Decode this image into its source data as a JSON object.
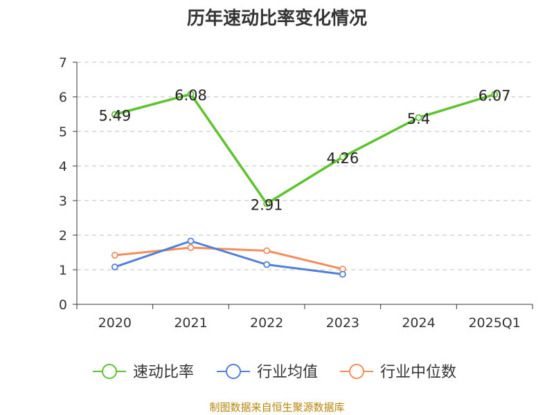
{
  "chart_data": {
    "type": "line",
    "title": "历年速动比率变化情况",
    "categories": [
      "2020",
      "2021",
      "2022",
      "2023",
      "2024",
      "2025Q1"
    ],
    "ylim": [
      0,
      7
    ],
    "yticks": [
      0,
      1,
      2,
      3,
      4,
      5,
      6,
      7
    ],
    "grid": true,
    "legend_position": "bottom",
    "series": [
      {
        "name": "速动比率",
        "color": "#5cc22e",
        "values": [
          5.49,
          6.08,
          2.91,
          4.26,
          5.4,
          6.07
        ],
        "labels": [
          "5.49",
          "6.08",
          "2.91",
          "4.26",
          "5.4",
          "6.07"
        ]
      },
      {
        "name": "行业均值",
        "color": "#4f7fd8",
        "values": [
          1.08,
          1.83,
          1.15,
          0.87,
          null,
          null
        ]
      },
      {
        "name": "行业中位数",
        "color": "#f48d5c",
        "values": [
          1.42,
          1.64,
          1.55,
          1.02,
          null,
          null
        ]
      }
    ],
    "source": "制图数据来自恒生聚源数据库"
  }
}
